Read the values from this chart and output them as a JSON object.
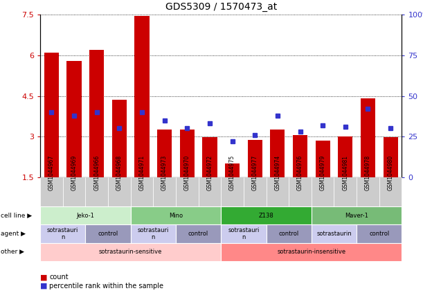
{
  "title": "GDS5309 / 1570473_at",
  "samples": [
    "GSM1044967",
    "GSM1044969",
    "GSM1044966",
    "GSM1044968",
    "GSM1044971",
    "GSM1044973",
    "GSM1044970",
    "GSM1044972",
    "GSM1044975",
    "GSM1044977",
    "GSM1044974",
    "GSM1044976",
    "GSM1044979",
    "GSM1044981",
    "GSM1044978",
    "GSM1044980"
  ],
  "counts": [
    6.1,
    5.8,
    6.2,
    4.35,
    7.45,
    3.25,
    3.25,
    2.97,
    2.0,
    2.88,
    3.25,
    3.05,
    2.85,
    3.0,
    4.4,
    2.97
  ],
  "percentiles": [
    40,
    38,
    40,
    30,
    40,
    35,
    30,
    33,
    22,
    26,
    38,
    28,
    32,
    31,
    42,
    30
  ],
  "ylim_left": [
    1.5,
    7.5
  ],
  "ylim_right": [
    0,
    100
  ],
  "bar_color": "#CC0000",
  "dot_color": "#3333CC",
  "bg_color": "#FFFFFF",
  "tick_bg_color": "#CCCCCC",
  "cell_lines": [
    {
      "label": "Jeko-1",
      "start": 0,
      "end": 3,
      "color": "#CCEECC"
    },
    {
      "label": "Mino",
      "start": 4,
      "end": 7,
      "color": "#88CC88"
    },
    {
      "label": "Z138",
      "start": 8,
      "end": 11,
      "color": "#33AA33"
    },
    {
      "label": "Maver-1",
      "start": 12,
      "end": 15,
      "color": "#77BB77"
    }
  ],
  "agents": [
    {
      "label": "sotrastauri\nn",
      "start": 0,
      "end": 1,
      "color": "#CCCCEE"
    },
    {
      "label": "control",
      "start": 2,
      "end": 3,
      "color": "#9999BB"
    },
    {
      "label": "sotrastauri\nn",
      "start": 4,
      "end": 5,
      "color": "#CCCCEE"
    },
    {
      "label": "control",
      "start": 6,
      "end": 7,
      "color": "#9999BB"
    },
    {
      "label": "sotrastauri\nn",
      "start": 8,
      "end": 9,
      "color": "#CCCCEE"
    },
    {
      "label": "control",
      "start": 10,
      "end": 11,
      "color": "#9999BB"
    },
    {
      "label": "sotrastaurin",
      "start": 12,
      "end": 13,
      "color": "#CCCCEE"
    },
    {
      "label": "control",
      "start": 14,
      "end": 15,
      "color": "#9999BB"
    }
  ],
  "others": [
    {
      "label": "sotrastaurin-sensitive",
      "start": 0,
      "end": 7,
      "color": "#FFCCCC"
    },
    {
      "label": "sotrastaurin-insensitive",
      "start": 8,
      "end": 15,
      "color": "#FF8888"
    }
  ],
  "row_labels": [
    "cell line",
    "agent",
    "other"
  ],
  "legend_count_color": "#CC0000",
  "legend_dot_color": "#3333CC"
}
